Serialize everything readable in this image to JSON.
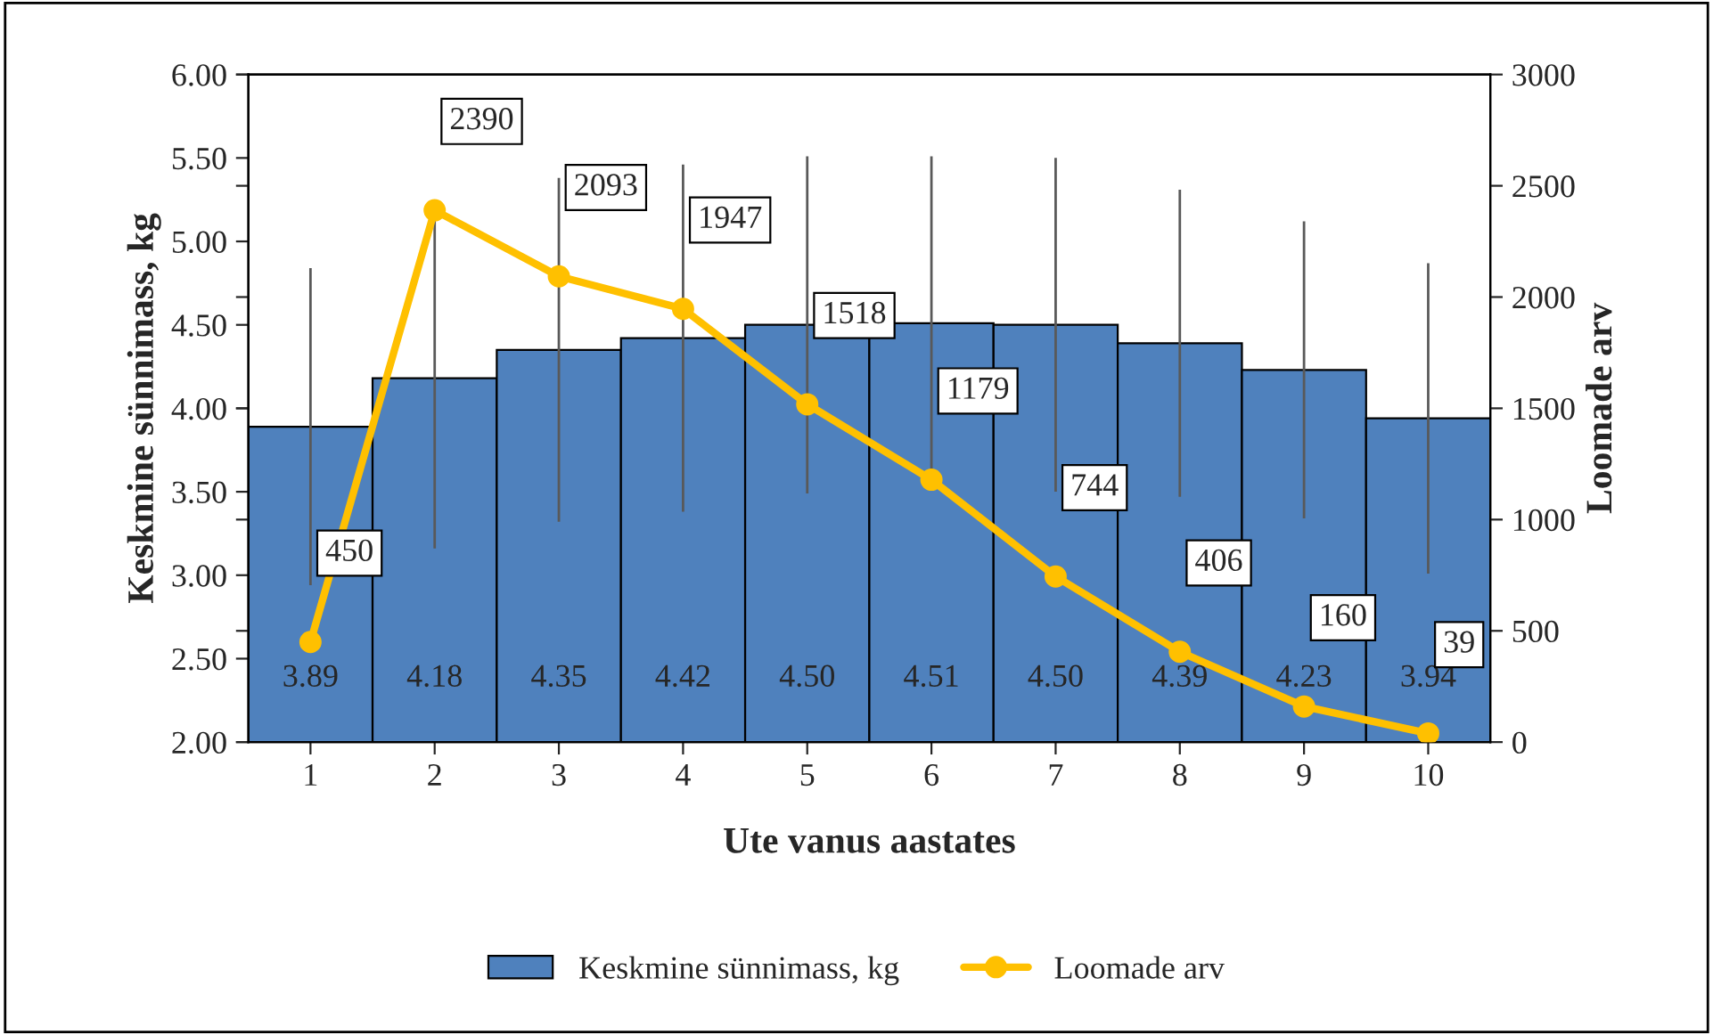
{
  "chart_data": {
    "type": "bar",
    "categories": [
      "1",
      "2",
      "3",
      "4",
      "5",
      "6",
      "7",
      "8",
      "9",
      "10"
    ],
    "series": [
      {
        "name": "Keskmine sünnimass, kg",
        "color": "#4f81bd",
        "values": [
          3.89,
          4.18,
          4.35,
          4.42,
          4.5,
          4.51,
          4.5,
          4.39,
          4.23,
          3.94
        ],
        "value_labels": [
          "3.89",
          "4.18",
          "4.35",
          "4.42",
          "4.50",
          "4.51",
          "4.50",
          "4.39",
          "4.23",
          "3.94"
        ],
        "errors": [
          0.95,
          1.02,
          1.03,
          1.04,
          1.01,
          1.0,
          1.0,
          0.92,
          0.89,
          0.93
        ]
      },
      {
        "name": "Loomade arv",
        "type": "line",
        "axis": "y2",
        "color": "#ffc000",
        "values": [
          450,
          2390,
          2093,
          1947,
          1518,
          1179,
          744,
          406,
          160,
          39
        ]
      }
    ],
    "xlabel": "Ute vanus aastates",
    "ylabel": "Keskmine sünnimass, kg",
    "y2label": "Loomade arv",
    "ylim": [
      2,
      6
    ],
    "yticks": [
      {
        "value": 2,
        "label": "2.00"
      },
      {
        "value": 2.5,
        "label": "2.50"
      },
      {
        "value": 3,
        "label": "3.00"
      },
      {
        "value": 3.5,
        "label": "3.50"
      },
      {
        "value": 4,
        "label": "4.00"
      },
      {
        "value": 4.5,
        "label": "4.50"
      },
      {
        "value": 5,
        "label": "5.00"
      },
      {
        "value": 5.5,
        "label": "5.50"
      },
      {
        "value": 6,
        "label": "6.00"
      }
    ],
    "y2lim": [
      0,
      3000
    ],
    "y2ticks": [
      0,
      500,
      1000,
      1500,
      2000,
      2500,
      3000
    ],
    "legend": "bottom",
    "data_labels": true,
    "marker": "circle",
    "grid": false
  }
}
